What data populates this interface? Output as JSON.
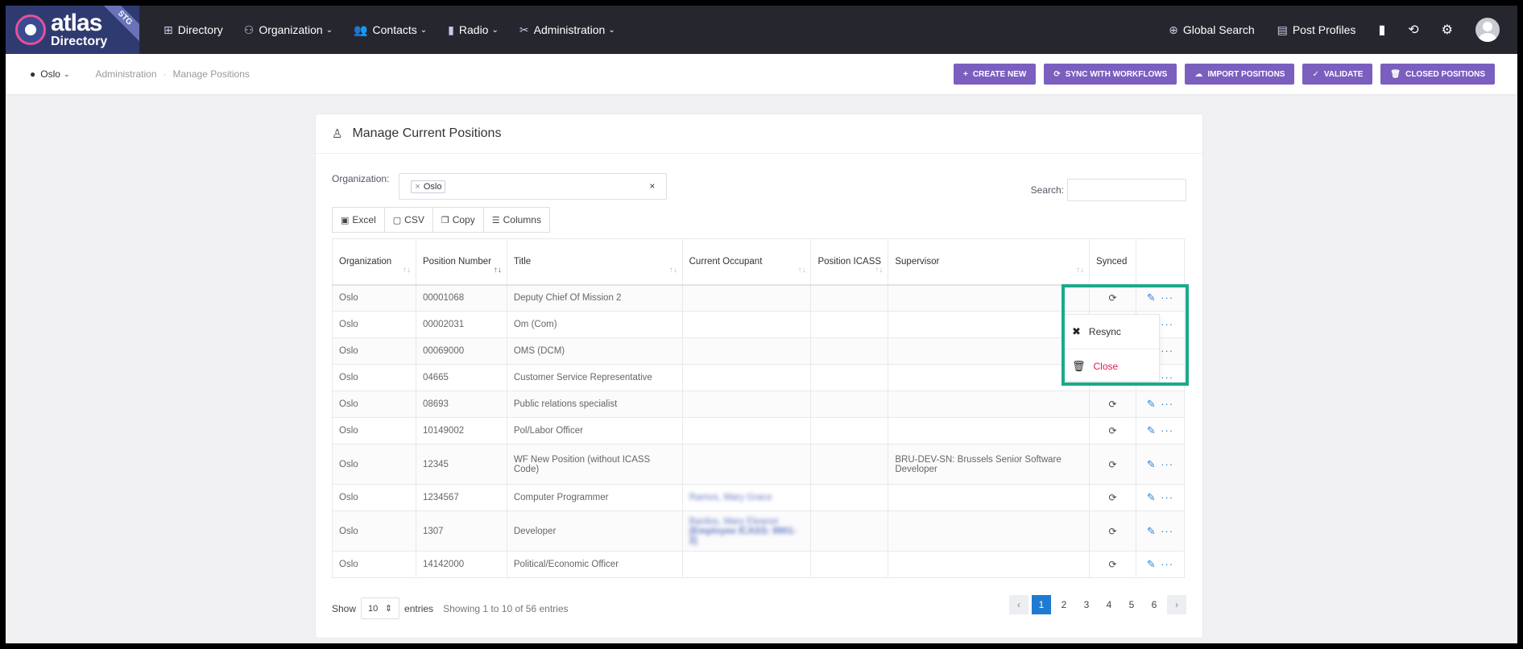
{
  "brand": {
    "name": "atlas",
    "sub": "Directory",
    "env": "STG"
  },
  "nav": {
    "items": [
      {
        "label": "Directory",
        "icon": "directory-icon",
        "glyph": "⊞",
        "chev": false
      },
      {
        "label": "Organization",
        "icon": "org-chart-icon",
        "glyph": "⚇",
        "chev": true
      },
      {
        "label": "Contacts",
        "icon": "contacts-icon",
        "glyph": "👥",
        "chev": true
      },
      {
        "label": "Radio",
        "icon": "radio-icon",
        "glyph": "▮",
        "chev": true
      },
      {
        "label": "Administration",
        "icon": "tools-icon",
        "glyph": "✂",
        "chev": true
      }
    ],
    "global_search": "Global Search",
    "post_profiles": "Post Profiles"
  },
  "subbar": {
    "org": "Oslo",
    "breadcrumb": [
      "Administration",
      "Manage Positions"
    ],
    "actions": [
      {
        "label": "CREATE NEW",
        "icon": "plus-icon",
        "glyph": "+"
      },
      {
        "label": "SYNC WITH WORKFLOWS",
        "icon": "sync-icon",
        "glyph": "⟳"
      },
      {
        "label": "IMPORT POSITIONS",
        "icon": "cloud-upload-icon",
        "glyph": "☁"
      },
      {
        "label": "VALIDATE",
        "icon": "check-icon",
        "glyph": "✓"
      },
      {
        "label": "CLOSED POSITIONS",
        "icon": "trash-icon",
        "glyph": "🗑"
      }
    ]
  },
  "card": {
    "title": "Manage Current Positions",
    "org_label": "Organization:",
    "org_tag": "Oslo",
    "search_label": "Search:",
    "export": [
      "Excel",
      "CSV",
      "Copy",
      "Columns"
    ]
  },
  "table": {
    "headers": [
      "Organization",
      "Position Number",
      "Title",
      "Current Occupant",
      "Position ICASS",
      "Supervisor",
      "Synced",
      ""
    ],
    "rows": [
      {
        "org": "Oslo",
        "num": "00001068",
        "title": "Deputy Chief Of Mission 2",
        "occupant": "",
        "occupant2": "",
        "icass": "",
        "supervisor": ""
      },
      {
        "org": "Oslo",
        "num": "00002031",
        "title": "Om (Com)",
        "occupant": "",
        "occupant2": "",
        "icass": "",
        "supervisor": ""
      },
      {
        "org": "Oslo",
        "num": "00069000",
        "title": "OMS (DCM)",
        "occupant": "",
        "occupant2": "",
        "icass": "",
        "supervisor": ""
      },
      {
        "org": "Oslo",
        "num": "04665",
        "title": "Customer Service Representative",
        "occupant": "",
        "occupant2": "",
        "icass": "",
        "supervisor": ""
      },
      {
        "org": "Oslo",
        "num": "08693",
        "title": "Public relations specialist",
        "occupant": "",
        "occupant2": "",
        "icass": "",
        "supervisor": ""
      },
      {
        "org": "Oslo",
        "num": "10149002",
        "title": "Pol/Labor Officer",
        "occupant": "",
        "occupant2": "",
        "icass": "",
        "supervisor": ""
      },
      {
        "org": "Oslo",
        "num": "12345",
        "title": "WF New Position (without ICASS Code)",
        "occupant": "",
        "occupant2": "",
        "icass": "",
        "supervisor": "BRU-DEV-SN: Brussels Senior Software Developer"
      },
      {
        "org": "Oslo",
        "num": "1234567",
        "title": "Computer Programmer",
        "occupant": "Ramos, Mary Grace",
        "occupant2": "",
        "icass": "",
        "supervisor": ""
      },
      {
        "org": "Oslo",
        "num": "1307",
        "title": "Developer",
        "occupant": "Bardos, Mary Eleanor",
        "occupant2": "(Employee ICASS: 9901-2)",
        "icass": "",
        "supervisor": ""
      },
      {
        "org": "Oslo",
        "num": "14142000",
        "title": "Political/Economic Officer",
        "occupant": "",
        "occupant2": "",
        "icass": "",
        "supervisor": ""
      }
    ]
  },
  "dropdown": {
    "resync": "Resync",
    "close": "Close"
  },
  "footer": {
    "show": "Show",
    "length": "10",
    "entries": "entries",
    "info": "Showing 1 to 10 of 56 entries",
    "pages": [
      "1",
      "2",
      "3",
      "4",
      "5",
      "6"
    ]
  },
  "colors": {
    "accent": "#7b5fbf",
    "nav_bg": "#26272e",
    "highlight": "#1aaa8a",
    "link": "#1e7bd1",
    "danger": "#e2175a"
  }
}
